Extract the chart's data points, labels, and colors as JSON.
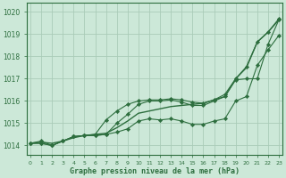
{
  "title": "Graphe pression niveau de la mer (hPa)",
  "background_color": "#cce8d8",
  "grid_color": "#aaccb8",
  "line_color": "#2d6e3e",
  "x_labels": [
    "0",
    "1",
    "2",
    "3",
    "4",
    "5",
    "6",
    "7",
    "8",
    "9",
    "10",
    "11",
    "12",
    "13",
    "14",
    "15",
    "16",
    "17",
    "18",
    "19",
    "20",
    "21",
    "22",
    "23"
  ],
  "y_ticks": [
    1014,
    1015,
    1016,
    1017,
    1018,
    1019,
    1020
  ],
  "ylim": [
    1013.6,
    1020.4
  ],
  "xlim": [
    -0.3,
    23.3
  ],
  "series": [
    {
      "data": [
        1014.1,
        1014.15,
        1014.1,
        1014.2,
        1014.35,
        1014.45,
        1014.5,
        1014.55,
        1014.8,
        1015.1,
        1015.45,
        1015.55,
        1015.65,
        1015.75,
        1015.8,
        1015.85,
        1015.9,
        1016.05,
        1016.2,
        1017.0,
        1017.5,
        1018.65,
        1019.1,
        1019.65
      ],
      "markers": false,
      "linewidth": 1.0
    },
    {
      "data": [
        1014.1,
        1014.2,
        1014.0,
        1014.2,
        1014.4,
        1014.45,
        1014.5,
        1015.15,
        1015.55,
        1015.85,
        1016.0,
        1016.05,
        1016.05,
        1016.1,
        1016.05,
        1015.95,
        1015.9,
        1016.05,
        1016.3,
        1017.0,
        1017.55,
        1018.65,
        1019.1,
        1019.7
      ],
      "markers": true,
      "linewidth": 0.8
    },
    {
      "data": [
        1014.1,
        1014.1,
        1014.0,
        1014.2,
        1014.4,
        1014.45,
        1014.45,
        1014.5,
        1015.0,
        1015.4,
        1015.85,
        1016.0,
        1016.0,
        1016.05,
        1015.95,
        1015.8,
        1015.8,
        1016.0,
        1016.2,
        1016.95,
        1017.0,
        1017.0,
        1018.55,
        1019.65
      ],
      "markers": true,
      "linewidth": 0.8
    },
    {
      "data": [
        1014.1,
        1014.1,
        1014.0,
        1014.2,
        1014.4,
        1014.45,
        1014.45,
        1014.5,
        1014.6,
        1014.75,
        1015.1,
        1015.2,
        1015.15,
        1015.2,
        1015.1,
        1014.95,
        1014.95,
        1015.1,
        1015.2,
        1016.0,
        1016.2,
        1017.6,
        1018.3,
        1018.95
      ],
      "markers": true,
      "linewidth": 0.8
    }
  ]
}
